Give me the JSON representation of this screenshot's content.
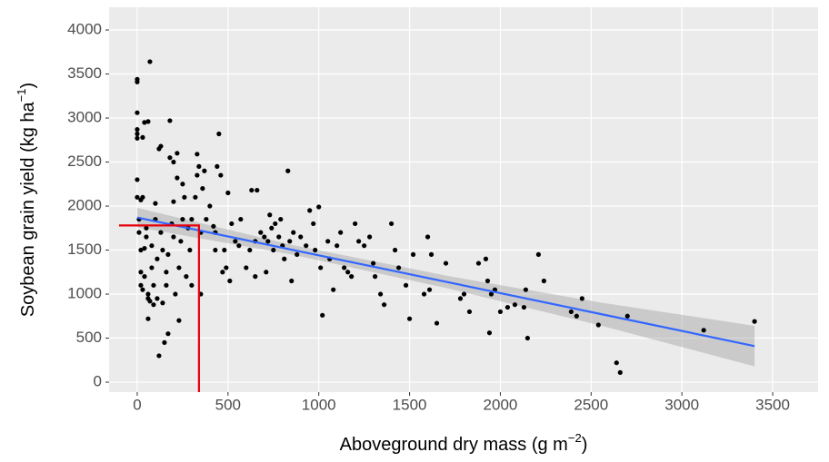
{
  "chart_data": {
    "type": "scatter",
    "xlabel": [
      "Aboveground  dry mass (g m",
      "−2",
      ")"
    ],
    "ylabel": [
      "Soybean  grain yield (kg ha",
      "−1",
      ")"
    ],
    "xlim": [
      -155,
      3750
    ],
    "ylim": [
      -113,
      4258
    ],
    "xticks": [
      0,
      500,
      1000,
      1500,
      2000,
      2500,
      3000,
      3500
    ],
    "yticks": [
      0,
      500,
      1000,
      1500,
      2000,
      2500,
      3000,
      3500,
      4000
    ],
    "grid": true,
    "color": "#000000",
    "x": [
      0,
      0,
      0,
      0,
      0,
      0,
      0,
      0,
      20,
      30,
      40,
      30,
      60,
      70,
      10,
      10,
      20,
      20,
      20,
      30,
      40,
      40,
      50,
      50,
      60,
      60,
      70,
      60,
      80,
      80,
      90,
      90,
      100,
      100,
      110,
      110,
      120,
      130,
      130,
      140,
      140,
      120,
      150,
      160,
      160,
      170,
      170,
      180,
      180,
      190,
      200,
      200,
      200,
      210,
      220,
      220,
      230,
      230,
      240,
      250,
      250,
      260,
      270,
      280,
      290,
      300,
      300,
      320,
      330,
      330,
      340,
      350,
      350,
      360,
      370,
      380,
      400,
      420,
      430,
      430,
      440,
      450,
      460,
      470,
      480,
      490,
      500,
      510,
      520,
      540,
      560,
      570,
      600,
      620,
      630,
      650,
      650,
      660,
      680,
      700,
      710,
      720,
      730,
      740,
      750,
      760,
      780,
      790,
      800,
      810,
      830,
      840,
      850,
      860,
      880,
      900,
      930,
      950,
      970,
      980,
      1000,
      1010,
      1020,
      1050,
      1060,
      1080,
      1100,
      1120,
      1140,
      1160,
      1180,
      1200,
      1220,
      1250,
      1280,
      1300,
      1310,
      1340,
      1360,
      1400,
      1420,
      1440,
      1480,
      1500,
      1520,
      1580,
      1600,
      1610,
      1620,
      1650,
      1700,
      1780,
      1800,
      1830,
      1880,
      1920,
      1930,
      1940,
      1950,
      1970,
      2000,
      2040,
      2080,
      2130,
      2140,
      2150,
      2210,
      2240,
      2390,
      2420,
      2450,
      2540,
      2640,
      2660,
      2700,
      3120,
      3400
    ],
    "values": [
      3440,
      3410,
      3060,
      2870,
      2820,
      2770,
      2300,
      2100,
      2070,
      2100,
      2950,
      2780,
      2960,
      3640,
      1850,
      1700,
      1500,
      1250,
      1100,
      1050,
      1200,
      1520,
      1750,
      1650,
      1000,
      950,
      920,
      720,
      1550,
      1300,
      1100,
      880,
      2030,
      1850,
      1400,
      950,
      2650,
      2680,
      1700,
      1500,
      900,
      300,
      450,
      1100,
      1250,
      1450,
      550,
      2550,
      2970,
      1800,
      2500,
      2050,
      1650,
      1000,
      2320,
      2600,
      1300,
      700,
      1600,
      2250,
      1850,
      2100,
      1200,
      1750,
      1500,
      1850,
      1100,
      2100,
      2590,
      2350,
      2450,
      1700,
      1000,
      2200,
      2400,
      1850,
      2000,
      1770,
      1700,
      1500,
      2450,
      2820,
      2350,
      1250,
      1500,
      1300,
      2150,
      1150,
      1800,
      1600,
      1550,
      1850,
      1300,
      1500,
      2180,
      1600,
      1200,
      2180,
      1700,
      1650,
      1250,
      1600,
      1900,
      1750,
      1500,
      1800,
      1650,
      1850,
      1550,
      1400,
      2400,
      1600,
      1150,
      1700,
      1450,
      1650,
      1550,
      1950,
      1800,
      1500,
      1990,
      1300,
      760,
      1600,
      1400,
      1050,
      1550,
      1700,
      1300,
      1250,
      1200,
      1800,
      1600,
      1550,
      1650,
      1350,
      1200,
      1000,
      880,
      1800,
      1500,
      1300,
      1100,
      720,
      1450,
      1000,
      1650,
      1050,
      1450,
      670,
      1350,
      950,
      1000,
      800,
      1350,
      1400,
      1150,
      560,
      1000,
      1050,
      800,
      850,
      880,
      850,
      1050,
      500,
      1450,
      1150,
      800,
      750,
      950,
      650,
      220,
      110,
      750,
      590,
      690
    ],
    "fit": {
      "color": "#3366ff",
      "band_color": "#999999",
      "x": [
        0,
        850,
        1700,
        2550,
        3400
      ],
      "y": [
        1870,
        1505,
        1140,
        775,
        410
      ],
      "upper": [
        1980,
        1560,
        1210,
        905,
        640
      ],
      "lower": [
        1760,
        1450,
        1070,
        645,
        180
      ]
    },
    "reference": {
      "color": "#e8000b",
      "x": [
        -100,
        340,
        340
      ],
      "y": [
        1780,
        1780,
        -113
      ]
    }
  }
}
